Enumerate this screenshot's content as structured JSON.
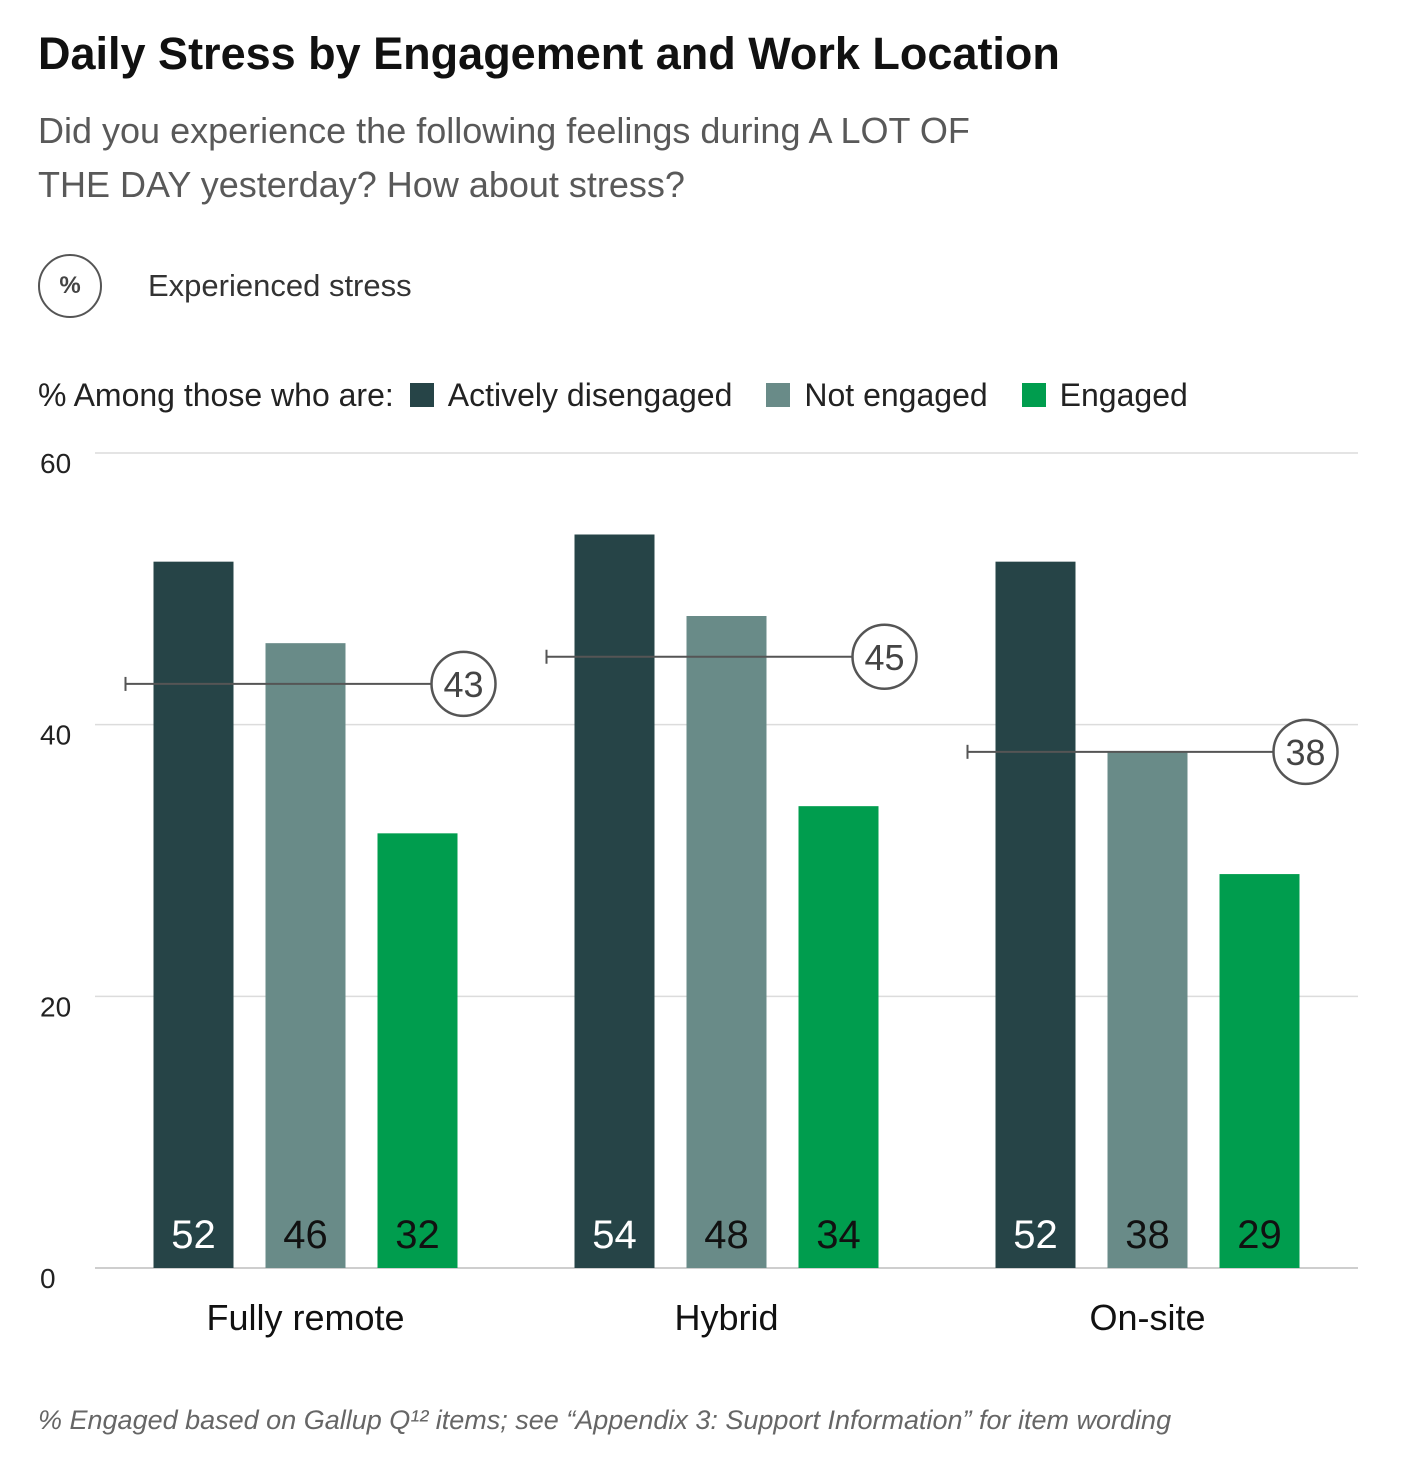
{
  "title": "Daily Stress by Engagement and Work Location",
  "subtitle": "Did you experience the following feelings during A LOT OF THE DAY yesterday? How about stress?",
  "measure": {
    "symbol": "%",
    "label": "Experienced stress"
  },
  "legend": {
    "prefix": "% Among those who are:"
  },
  "footnote": "% Engaged based on Gallup Q¹² items; see “Appendix 3: Support Information” for item wording",
  "chart_data": {
    "type": "bar",
    "title": "Daily Stress by Engagement and Work Location",
    "ylim": [
      0,
      60
    ],
    "yticks": [
      0,
      20,
      40,
      60
    ],
    "grid": true,
    "legend_position": "top-left",
    "categories": [
      "Fully remote",
      "Hybrid",
      "On-site"
    ],
    "series": [
      {
        "name": "Actively disengaged",
        "color": "#264447",
        "label_color": "#ffffff",
        "values": [
          52,
          54,
          52
        ]
      },
      {
        "name": "Not engaged",
        "color": "#698b88",
        "label_color": "#111111",
        "values": [
          46,
          48,
          38
        ]
      },
      {
        "name": "Engaged",
        "color": "#009d4e",
        "label_color": "#111111",
        "values": [
          32,
          34,
          29
        ]
      }
    ],
    "overall": {
      "values": [
        43,
        45,
        38
      ]
    }
  }
}
